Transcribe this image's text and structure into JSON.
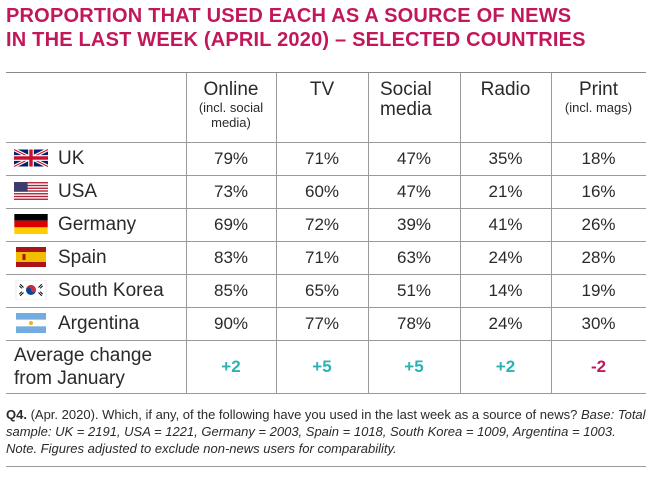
{
  "title": {
    "line1": "PROPORTION THAT USED EACH AS A SOURCE OF NEWS",
    "line2": "IN THE LAST WEEK (APRIL 2020) – SELECTED COUNTRIES"
  },
  "colors": {
    "title": "#c2185b",
    "positive": "#2bb3b3",
    "negative": "#c2185b"
  },
  "chart_data": {
    "type": "table",
    "columns": [
      {
        "label": "Online",
        "sub": "(incl. social media)"
      },
      {
        "label": "TV",
        "sub": ""
      },
      {
        "label": "Social media",
        "sub": ""
      },
      {
        "label": "Radio",
        "sub": ""
      },
      {
        "label": "Print",
        "sub": "(incl. mags)"
      }
    ],
    "rows": [
      {
        "country": "UK",
        "flag": "uk-flag-icon",
        "values": [
          "79%",
          "71%",
          "47%",
          "35%",
          "18%"
        ]
      },
      {
        "country": "USA",
        "flag": "usa-flag-icon",
        "values": [
          "73%",
          "60%",
          "47%",
          "21%",
          "16%"
        ]
      },
      {
        "country": "Germany",
        "flag": "germany-flag-icon",
        "values": [
          "69%",
          "72%",
          "39%",
          "41%",
          "26%"
        ]
      },
      {
        "country": "Spain",
        "flag": "spain-flag-icon",
        "values": [
          "83%",
          "71%",
          "63%",
          "24%",
          "28%"
        ]
      },
      {
        "country": "South Korea",
        "flag": "south-korea-flag-icon",
        "values": [
          "85%",
          "65%",
          "51%",
          "14%",
          "19%"
        ]
      },
      {
        "country": "Argentina",
        "flag": "argentina-flag-icon",
        "values": [
          "90%",
          "77%",
          "78%",
          "24%",
          "30%"
        ]
      }
    ],
    "average_change": {
      "label_line1": "Average change",
      "label_line2": "from January",
      "values": [
        "+2",
        "+5",
        "+5",
        "+2",
        "-2"
      ]
    }
  },
  "note": {
    "q_label": "Q4.",
    "q_text": " (Apr. 2020). Which, if any, of the following have you used in the last week as a source of news? ",
    "base": "Base: Total sample: UK = 2191, USA = 1221, Germany = 2003, Spain = 1018, South Korea = 1009, Argentina = 1003. Note. Figures adjusted to exclude non-news users for comparability."
  }
}
